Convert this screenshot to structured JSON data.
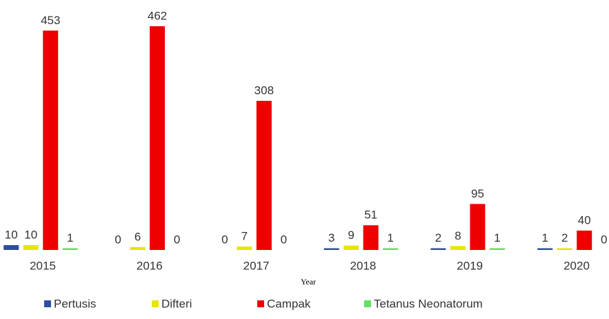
{
  "chart_data": {
    "type": "bar",
    "x_label": "Year",
    "categories": [
      "2015",
      "2016",
      "2017",
      "2018",
      "2019",
      "2020"
    ],
    "series": [
      {
        "name": "Pertusis",
        "color": "#2f4f9e",
        "values": [
          10,
          0,
          0,
          3,
          2,
          1
        ]
      },
      {
        "name": "Difteri",
        "color": "#e6e600",
        "values": [
          10,
          6,
          7,
          9,
          8,
          2
        ]
      },
      {
        "name": "Campak",
        "color": "#ee0000",
        "values": [
          453,
          462,
          308,
          51,
          95,
          40
        ]
      },
      {
        "name": "Tetanus Neonatorum",
        "color": "#66dd66",
        "values": [
          1,
          0,
          0,
          1,
          1,
          0
        ]
      }
    ],
    "legend": "bottom"
  }
}
